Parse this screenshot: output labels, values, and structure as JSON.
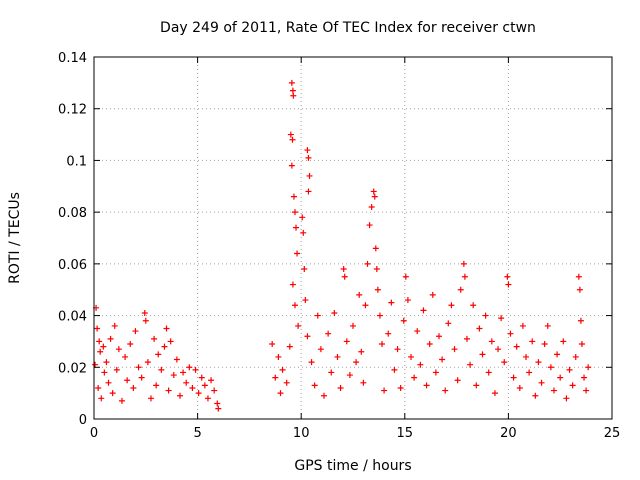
{
  "chart_data": {
    "type": "scatter",
    "title": "Day 249 of 2011, Rate Of TEC Index for receiver ctwn",
    "xlabel": "GPS time / hours",
    "ylabel": "ROTI / TECUs",
    "xlim": [
      0,
      25
    ],
    "ylim": [
      0,
      0.14
    ],
    "xticks": [
      0,
      5,
      10,
      15,
      20,
      25
    ],
    "xtick_labels": [
      "0",
      "5",
      "10",
      "15",
      "20",
      "25"
    ],
    "yticks": [
      0,
      0.02,
      0.04,
      0.06,
      0.08,
      0.1,
      0.12,
      0.14
    ],
    "ytick_labels": [
      "0",
      "0.02",
      "0.04",
      "0.06",
      "0.08",
      "0.1",
      "0.12",
      "0.14"
    ],
    "grid": true,
    "marker": "+",
    "color": "#ff0000",
    "series": [
      {
        "name": "ROTI",
        "points": [
          [
            0.05,
            0.021
          ],
          [
            0.1,
            0.043
          ],
          [
            0.15,
            0.035
          ],
          [
            0.2,
            0.012
          ],
          [
            0.25,
            0.03
          ],
          [
            0.3,
            0.026
          ],
          [
            0.35,
            0.008
          ],
          [
            0.45,
            0.028
          ],
          [
            0.5,
            0.018
          ],
          [
            0.6,
            0.022
          ],
          [
            0.7,
            0.014
          ],
          [
            0.8,
            0.031
          ],
          [
            0.9,
            0.01
          ],
          [
            1.0,
            0.036
          ],
          [
            1.1,
            0.019
          ],
          [
            1.2,
            0.027
          ],
          [
            1.35,
            0.007
          ],
          [
            1.5,
            0.024
          ],
          [
            1.6,
            0.015
          ],
          [
            1.75,
            0.029
          ],
          [
            1.9,
            0.012
          ],
          [
            2.0,
            0.034
          ],
          [
            2.15,
            0.02
          ],
          [
            2.3,
            0.016
          ],
          [
            2.45,
            0.041
          ],
          [
            2.5,
            0.038
          ],
          [
            2.6,
            0.022
          ],
          [
            2.75,
            0.008
          ],
          [
            2.9,
            0.031
          ],
          [
            3.0,
            0.013
          ],
          [
            3.1,
            0.025
          ],
          [
            3.25,
            0.019
          ],
          [
            3.4,
            0.028
          ],
          [
            3.5,
            0.035
          ],
          [
            3.6,
            0.011
          ],
          [
            3.7,
            0.03
          ],
          [
            3.85,
            0.017
          ],
          [
            4.0,
            0.023
          ],
          [
            4.15,
            0.009
          ],
          [
            4.3,
            0.018
          ],
          [
            4.45,
            0.014
          ],
          [
            4.6,
            0.02
          ],
          [
            4.75,
            0.012
          ],
          [
            4.9,
            0.019
          ],
          [
            5.05,
            0.01
          ],
          [
            5.2,
            0.016
          ],
          [
            5.35,
            0.013
          ],
          [
            5.5,
            0.008
          ],
          [
            5.65,
            0.015
          ],
          [
            5.8,
            0.011
          ],
          [
            5.95,
            0.006
          ],
          [
            6.0,
            0.004
          ],
          [
            8.6,
            0.029
          ],
          [
            8.75,
            0.016
          ],
          [
            8.9,
            0.024
          ],
          [
            9.0,
            0.01
          ],
          [
            9.1,
            0.019
          ],
          [
            9.3,
            0.014
          ],
          [
            9.45,
            0.028
          ],
          [
            9.55,
            0.13
          ],
          [
            9.6,
            0.127
          ],
          [
            9.62,
            0.125
          ],
          [
            9.5,
            0.11
          ],
          [
            9.58,
            0.108
          ],
          [
            9.55,
            0.098
          ],
          [
            9.65,
            0.086
          ],
          [
            9.7,
            0.08
          ],
          [
            9.75,
            0.074
          ],
          [
            9.8,
            0.064
          ],
          [
            9.6,
            0.052
          ],
          [
            9.7,
            0.044
          ],
          [
            9.85,
            0.036
          ],
          [
            10.05,
            0.078
          ],
          [
            10.1,
            0.072
          ],
          [
            10.15,
            0.058
          ],
          [
            10.3,
            0.104
          ],
          [
            10.35,
            0.101
          ],
          [
            10.4,
            0.094
          ],
          [
            10.35,
            0.088
          ],
          [
            10.2,
            0.046
          ],
          [
            10.3,
            0.032
          ],
          [
            10.5,
            0.022
          ],
          [
            10.65,
            0.013
          ],
          [
            10.8,
            0.04
          ],
          [
            10.95,
            0.027
          ],
          [
            11.1,
            0.009
          ],
          [
            11.3,
            0.033
          ],
          [
            11.45,
            0.018
          ],
          [
            11.6,
            0.041
          ],
          [
            11.75,
            0.024
          ],
          [
            11.9,
            0.012
          ],
          [
            12.05,
            0.058
          ],
          [
            12.1,
            0.055
          ],
          [
            12.2,
            0.03
          ],
          [
            12.35,
            0.017
          ],
          [
            12.5,
            0.036
          ],
          [
            12.65,
            0.022
          ],
          [
            12.8,
            0.048
          ],
          [
            12.9,
            0.026
          ],
          [
            13.0,
            0.014
          ],
          [
            13.1,
            0.044
          ],
          [
            13.2,
            0.06
          ],
          [
            13.3,
            0.075
          ],
          [
            13.4,
            0.082
          ],
          [
            13.5,
            0.088
          ],
          [
            13.55,
            0.086
          ],
          [
            13.6,
            0.066
          ],
          [
            13.65,
            0.058
          ],
          [
            13.7,
            0.05
          ],
          [
            13.8,
            0.04
          ],
          [
            13.9,
            0.029
          ],
          [
            14.0,
            0.011
          ],
          [
            14.2,
            0.033
          ],
          [
            14.35,
            0.045
          ],
          [
            14.5,
            0.019
          ],
          [
            14.65,
            0.027
          ],
          [
            14.8,
            0.012
          ],
          [
            14.95,
            0.038
          ],
          [
            15.05,
            0.055
          ],
          [
            15.15,
            0.046
          ],
          [
            15.3,
            0.024
          ],
          [
            15.45,
            0.016
          ],
          [
            15.6,
            0.034
          ],
          [
            15.75,
            0.021
          ],
          [
            15.9,
            0.042
          ],
          [
            16.05,
            0.013
          ],
          [
            16.2,
            0.029
          ],
          [
            16.35,
            0.048
          ],
          [
            16.5,
            0.018
          ],
          [
            16.65,
            0.032
          ],
          [
            16.8,
            0.023
          ],
          [
            16.95,
            0.011
          ],
          [
            17.1,
            0.037
          ],
          [
            17.25,
            0.044
          ],
          [
            17.4,
            0.027
          ],
          [
            17.55,
            0.015
          ],
          [
            17.7,
            0.05
          ],
          [
            17.85,
            0.06
          ],
          [
            17.9,
            0.055
          ],
          [
            18.0,
            0.031
          ],
          [
            18.15,
            0.021
          ],
          [
            18.3,
            0.044
          ],
          [
            18.45,
            0.013
          ],
          [
            18.6,
            0.035
          ],
          [
            18.75,
            0.025
          ],
          [
            18.9,
            0.04
          ],
          [
            19.05,
            0.018
          ],
          [
            19.2,
            0.03
          ],
          [
            19.35,
            0.01
          ],
          [
            19.5,
            0.027
          ],
          [
            19.65,
            0.039
          ],
          [
            19.8,
            0.022
          ],
          [
            19.95,
            0.055
          ],
          [
            20.0,
            0.052
          ],
          [
            20.1,
            0.033
          ],
          [
            20.25,
            0.016
          ],
          [
            20.4,
            0.028
          ],
          [
            20.55,
            0.012
          ],
          [
            20.7,
            0.036
          ],
          [
            20.85,
            0.024
          ],
          [
            21.0,
            0.018
          ],
          [
            21.15,
            0.03
          ],
          [
            21.3,
            0.009
          ],
          [
            21.45,
            0.022
          ],
          [
            21.6,
            0.014
          ],
          [
            21.75,
            0.029
          ],
          [
            21.9,
            0.036
          ],
          [
            22.05,
            0.02
          ],
          [
            22.2,
            0.011
          ],
          [
            22.35,
            0.025
          ],
          [
            22.5,
            0.016
          ],
          [
            22.65,
            0.03
          ],
          [
            22.8,
            0.008
          ],
          [
            22.95,
            0.019
          ],
          [
            23.1,
            0.013
          ],
          [
            23.25,
            0.024
          ],
          [
            23.4,
            0.055
          ],
          [
            23.45,
            0.05
          ],
          [
            23.5,
            0.038
          ],
          [
            23.55,
            0.029
          ],
          [
            23.65,
            0.016
          ],
          [
            23.75,
            0.011
          ],
          [
            23.85,
            0.02
          ]
        ]
      }
    ]
  }
}
